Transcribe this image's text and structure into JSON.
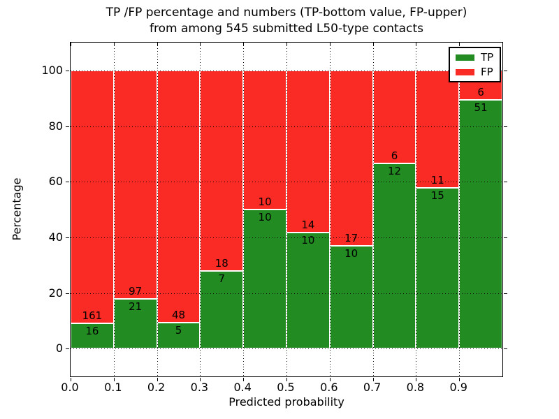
{
  "figure": {
    "title_line1": "TP /FP percentage and numbers (TP-bottom value, FP-upper)",
    "title_line2": "from among 545 submitted L50-type contacts",
    "background_color": "#ffffff"
  },
  "chart_data": {
    "type": "bar",
    "stacked": true,
    "title": "TP /FP percentage and numbers (TP-bottom value, FP-upper) from among 545 submitted L50-type contacts",
    "xlabel": "Predicted probability",
    "ylabel": "Percentage",
    "xlim": [
      0.0,
      1.0
    ],
    "ylim": [
      -10,
      110
    ],
    "x_tick_values": [
      0.0,
      0.1,
      0.2,
      0.3,
      0.4,
      0.5,
      0.6,
      0.7,
      0.8,
      0.9
    ],
    "x_tick_labels": [
      "0.0",
      "0.1",
      "0.2",
      "0.3",
      "0.4",
      "0.5",
      "0.6",
      "0.7",
      "0.8",
      "0.9"
    ],
    "y_tick_values": [
      0,
      20,
      40,
      60,
      80,
      100
    ],
    "y_tick_labels": [
      "0",
      "20",
      "40",
      "60",
      "80",
      "100"
    ],
    "grid": {
      "visible": true,
      "style": "dotted",
      "color": "#000000",
      "on_top": true
    },
    "total_contacts": 545,
    "bar_edge_color": "#ffffff",
    "series": [
      {
        "name": "TP",
        "color": "#228b22",
        "counts": [
          16,
          21,
          5,
          7,
          10,
          10,
          10,
          12,
          15,
          51
        ]
      },
      {
        "name": "FP",
        "color": "#fa2b25",
        "counts": [
          161,
          97,
          48,
          18,
          10,
          14,
          17,
          6,
          11,
          6
        ]
      }
    ],
    "bins": [
      {
        "x_range": [
          0.0,
          0.1
        ],
        "tp": 16,
        "fp": 161,
        "tp_pct": 9.04,
        "fp_pct": 90.96
      },
      {
        "x_range": [
          0.1,
          0.2
        ],
        "tp": 21,
        "fp": 97,
        "tp_pct": 17.8,
        "fp_pct": 82.2
      },
      {
        "x_range": [
          0.2,
          0.3
        ],
        "tp": 5,
        "fp": 48,
        "tp_pct": 9.43,
        "fp_pct": 90.57
      },
      {
        "x_range": [
          0.3,
          0.4
        ],
        "tp": 7,
        "fp": 18,
        "tp_pct": 28.0,
        "fp_pct": 72.0
      },
      {
        "x_range": [
          0.4,
          0.5
        ],
        "tp": 10,
        "fp": 10,
        "tp_pct": 50.0,
        "fp_pct": 50.0
      },
      {
        "x_range": [
          0.5,
          0.6
        ],
        "tp": 10,
        "fp": 14,
        "tp_pct": 41.67,
        "fp_pct": 58.33
      },
      {
        "x_range": [
          0.6,
          0.7
        ],
        "tp": 10,
        "fp": 17,
        "tp_pct": 37.04,
        "fp_pct": 62.96
      },
      {
        "x_range": [
          0.7,
          0.8
        ],
        "tp": 12,
        "fp": 6,
        "tp_pct": 66.67,
        "fp_pct": 33.33
      },
      {
        "x_range": [
          0.8,
          0.9
        ],
        "tp": 15,
        "fp": 11,
        "tp_pct": 57.69,
        "fp_pct": 42.31
      },
      {
        "x_range": [
          0.9,
          1.0
        ],
        "tp": 51,
        "fp": 6,
        "tp_pct": 89.47,
        "fp_pct": 10.53
      }
    ],
    "legend": {
      "position": "upper right",
      "entries": [
        {
          "label": "TP",
          "color": "#228b22"
        },
        {
          "label": "FP",
          "color": "#fa2b25"
        }
      ]
    }
  }
}
